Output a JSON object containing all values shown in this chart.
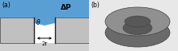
{
  "bg_color": "#e8e8e8",
  "panel_a_bg": "#d0d0d0",
  "liquid_color": "#5a9fd4",
  "membrane_color": "#c0c0c0",
  "membrane_edge": "#555555",
  "pore_white": "#f0f0f0",
  "label_a": "(a)",
  "label_b": "(b)",
  "delta_p_label": "ΔP",
  "theta_label": "θ",
  "twor_label": "2r",
  "torus_top": "#909090",
  "torus_side": "#6a6a6a",
  "torus_hole": "#585858",
  "torus_edge": "#404040"
}
